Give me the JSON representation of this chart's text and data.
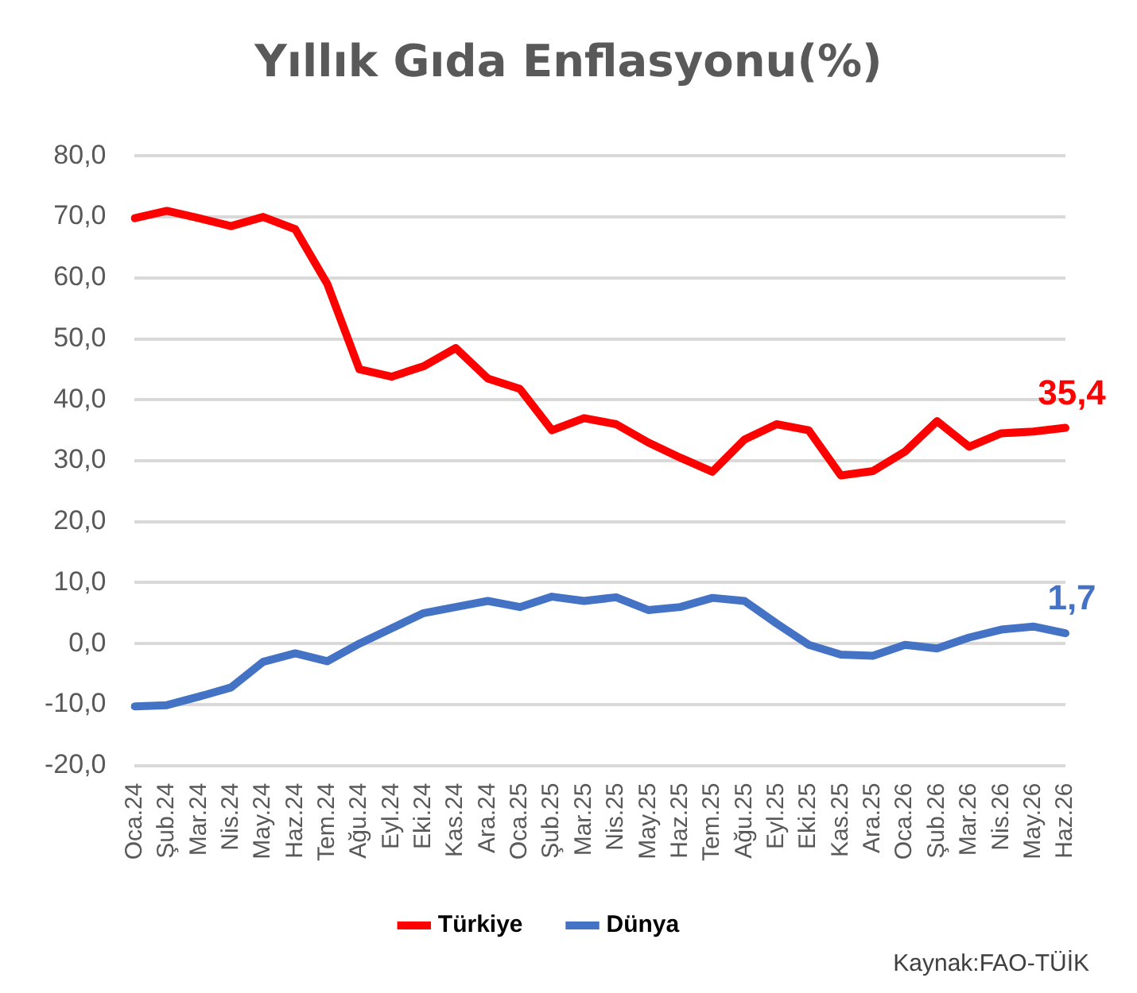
{
  "chart_data": {
    "type": "line",
    "title": "Yıllık Gıda Enflasyonu(%)",
    "categories": [
      "Oca.24",
      "Şub.24",
      "Mar.24",
      "Nis.24",
      "May.24",
      "Haz.24",
      "Tem.24",
      "Ağu.24",
      "Eyl.24",
      "Eki.24",
      "Kas.24",
      "Ara.24",
      "Oca.25",
      "Şub.25",
      "Mar.25",
      "Nis.25",
      "May.25",
      "Haz.25",
      "Tem.25",
      "Ağu.25",
      "Eyl.25",
      "Eki.25",
      "Kas.25",
      "Ara.25",
      "Oca.26",
      "Şub.26",
      "Mar.26",
      "Nis.26",
      "May.26",
      "Haz.26"
    ],
    "series": [
      {
        "name": "Türkiye",
        "color": "#ff0000",
        "values": [
          69.8,
          71,
          69.8,
          68.5,
          70,
          68,
          59,
          45,
          43.8,
          45.5,
          48.5,
          43.5,
          41.8,
          35,
          37,
          36,
          33,
          30.5,
          28.2,
          33.5,
          36,
          35,
          27.6,
          28.3,
          31.5,
          36.5,
          32.3,
          34.5,
          34.8,
          35.4
        ],
        "value_labels": [
          null,
          null,
          null,
          null,
          null,
          null,
          null,
          null,
          null,
          null,
          null,
          null,
          null,
          null,
          null,
          null,
          null,
          null,
          null,
          null,
          null,
          null,
          null,
          null,
          null,
          null,
          null,
          null,
          null,
          "35,4"
        ]
      },
      {
        "name": "Dünya",
        "color": "#4472c4",
        "values": [
          -10.3,
          -10.1,
          -8.7,
          -7.2,
          -3,
          -1.6,
          -2.9,
          0,
          2.5,
          5,
          6,
          7,
          6,
          7.7,
          7,
          7.6,
          5.5,
          6,
          7.5,
          7,
          3.3,
          -0.2,
          -1.8,
          -2,
          -0.2,
          -0.8,
          1,
          2.3,
          2.8,
          1.7
        ],
        "value_labels": [
          null,
          null,
          null,
          null,
          null,
          null,
          null,
          null,
          null,
          null,
          null,
          null,
          null,
          null,
          null,
          null,
          null,
          null,
          null,
          null,
          null,
          null,
          null,
          null,
          null,
          null,
          null,
          null,
          null,
          "1,7"
        ]
      }
    ],
    "ylim": [
      -20,
      80
    ],
    "yticks": [
      {
        "value": -20,
        "label": "-20,0"
      },
      {
        "value": -10,
        "label": "-10,0"
      },
      {
        "value": 0,
        "label": "0,0"
      },
      {
        "value": 10,
        "label": "10,0"
      },
      {
        "value": 20,
        "label": "20,0"
      },
      {
        "value": 30,
        "label": "30,0"
      },
      {
        "value": 40,
        "label": "40,0"
      },
      {
        "value": 50,
        "label": "50,0"
      },
      {
        "value": 60,
        "label": "60,0"
      },
      {
        "value": 70,
        "label": "70,0"
      },
      {
        "value": 80,
        "label": "80,0"
      }
    ],
    "grid": "y",
    "legend": "bottom",
    "marker": "none",
    "line_style": "solid",
    "annotations": [
      "Kaynak:FAO-TÜİK"
    ]
  }
}
